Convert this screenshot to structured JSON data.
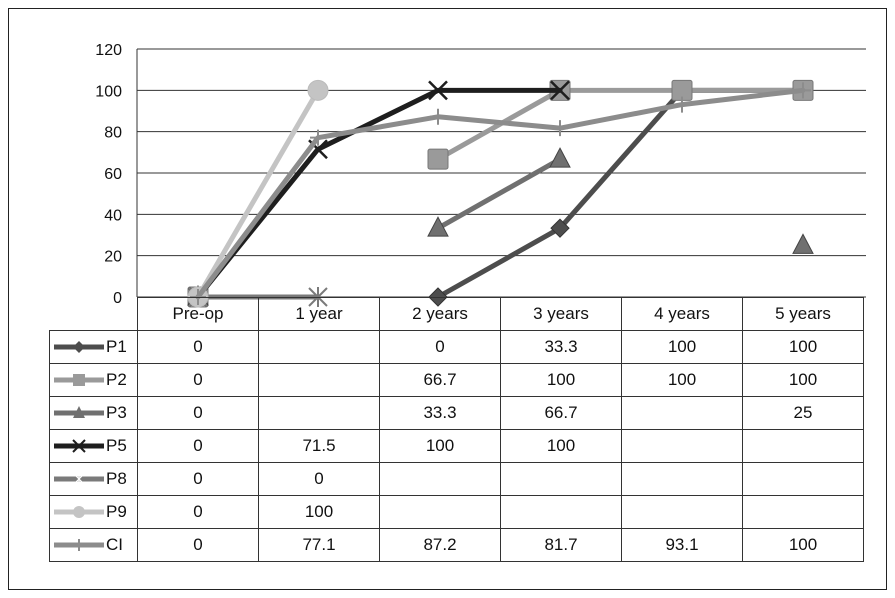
{
  "chart_data": {
    "type": "line",
    "title": "",
    "xlabel": "",
    "ylabel": "",
    "ylim": [
      0,
      120
    ],
    "yticks": [
      0,
      20,
      40,
      60,
      80,
      100,
      120
    ],
    "categories": [
      "Pre-op",
      "1 year",
      "2 years",
      "3 years",
      "4 years",
      "5 years"
    ],
    "grid": "horizontal",
    "legend": "table-left",
    "series": [
      {
        "name": "P1",
        "marker": "diamond",
        "color": "#4d4d4d",
        "values": [
          0,
          null,
          0,
          33.3,
          100,
          100
        ],
        "labels": [
          "0",
          "",
          "0",
          "33.3",
          "100",
          "100"
        ]
      },
      {
        "name": "P2",
        "marker": "square",
        "color": "#9a9a9a",
        "values": [
          0,
          null,
          66.7,
          100,
          100,
          100
        ],
        "labels": [
          "0",
          "",
          "66.7",
          "100",
          "100",
          "100"
        ]
      },
      {
        "name": "P3",
        "marker": "triangle",
        "color": "#707070",
        "values": [
          0,
          null,
          33.3,
          66.7,
          null,
          25
        ],
        "labels": [
          "0",
          "",
          "33.3",
          "66.7",
          "",
          "25"
        ]
      },
      {
        "name": "P5",
        "marker": "x",
        "color": "#1e1e1e",
        "values": [
          0,
          71.5,
          100,
          100,
          null,
          null
        ],
        "labels": [
          "0",
          "71.5",
          "100",
          "100",
          "",
          ""
        ]
      },
      {
        "name": "P8",
        "marker": "asterisk",
        "color": "#7a7a7a",
        "values": [
          0,
          0,
          null,
          null,
          null,
          null
        ],
        "labels": [
          "0",
          "0",
          "",
          "",
          "",
          ""
        ]
      },
      {
        "name": "P9",
        "marker": "circle",
        "color": "#c4c4c4",
        "values": [
          0,
          100,
          null,
          null,
          null,
          null
        ],
        "labels": [
          "0",
          "100",
          "",
          "",
          "",
          ""
        ]
      },
      {
        "name": "CI",
        "marker": "plus",
        "color": "#8c8c8c",
        "values": [
          0,
          77.1,
          87.2,
          81.7,
          93.1,
          100
        ],
        "labels": [
          "0",
          "77.1",
          "87.2",
          "81.7",
          "93.1",
          "100"
        ]
      }
    ]
  }
}
